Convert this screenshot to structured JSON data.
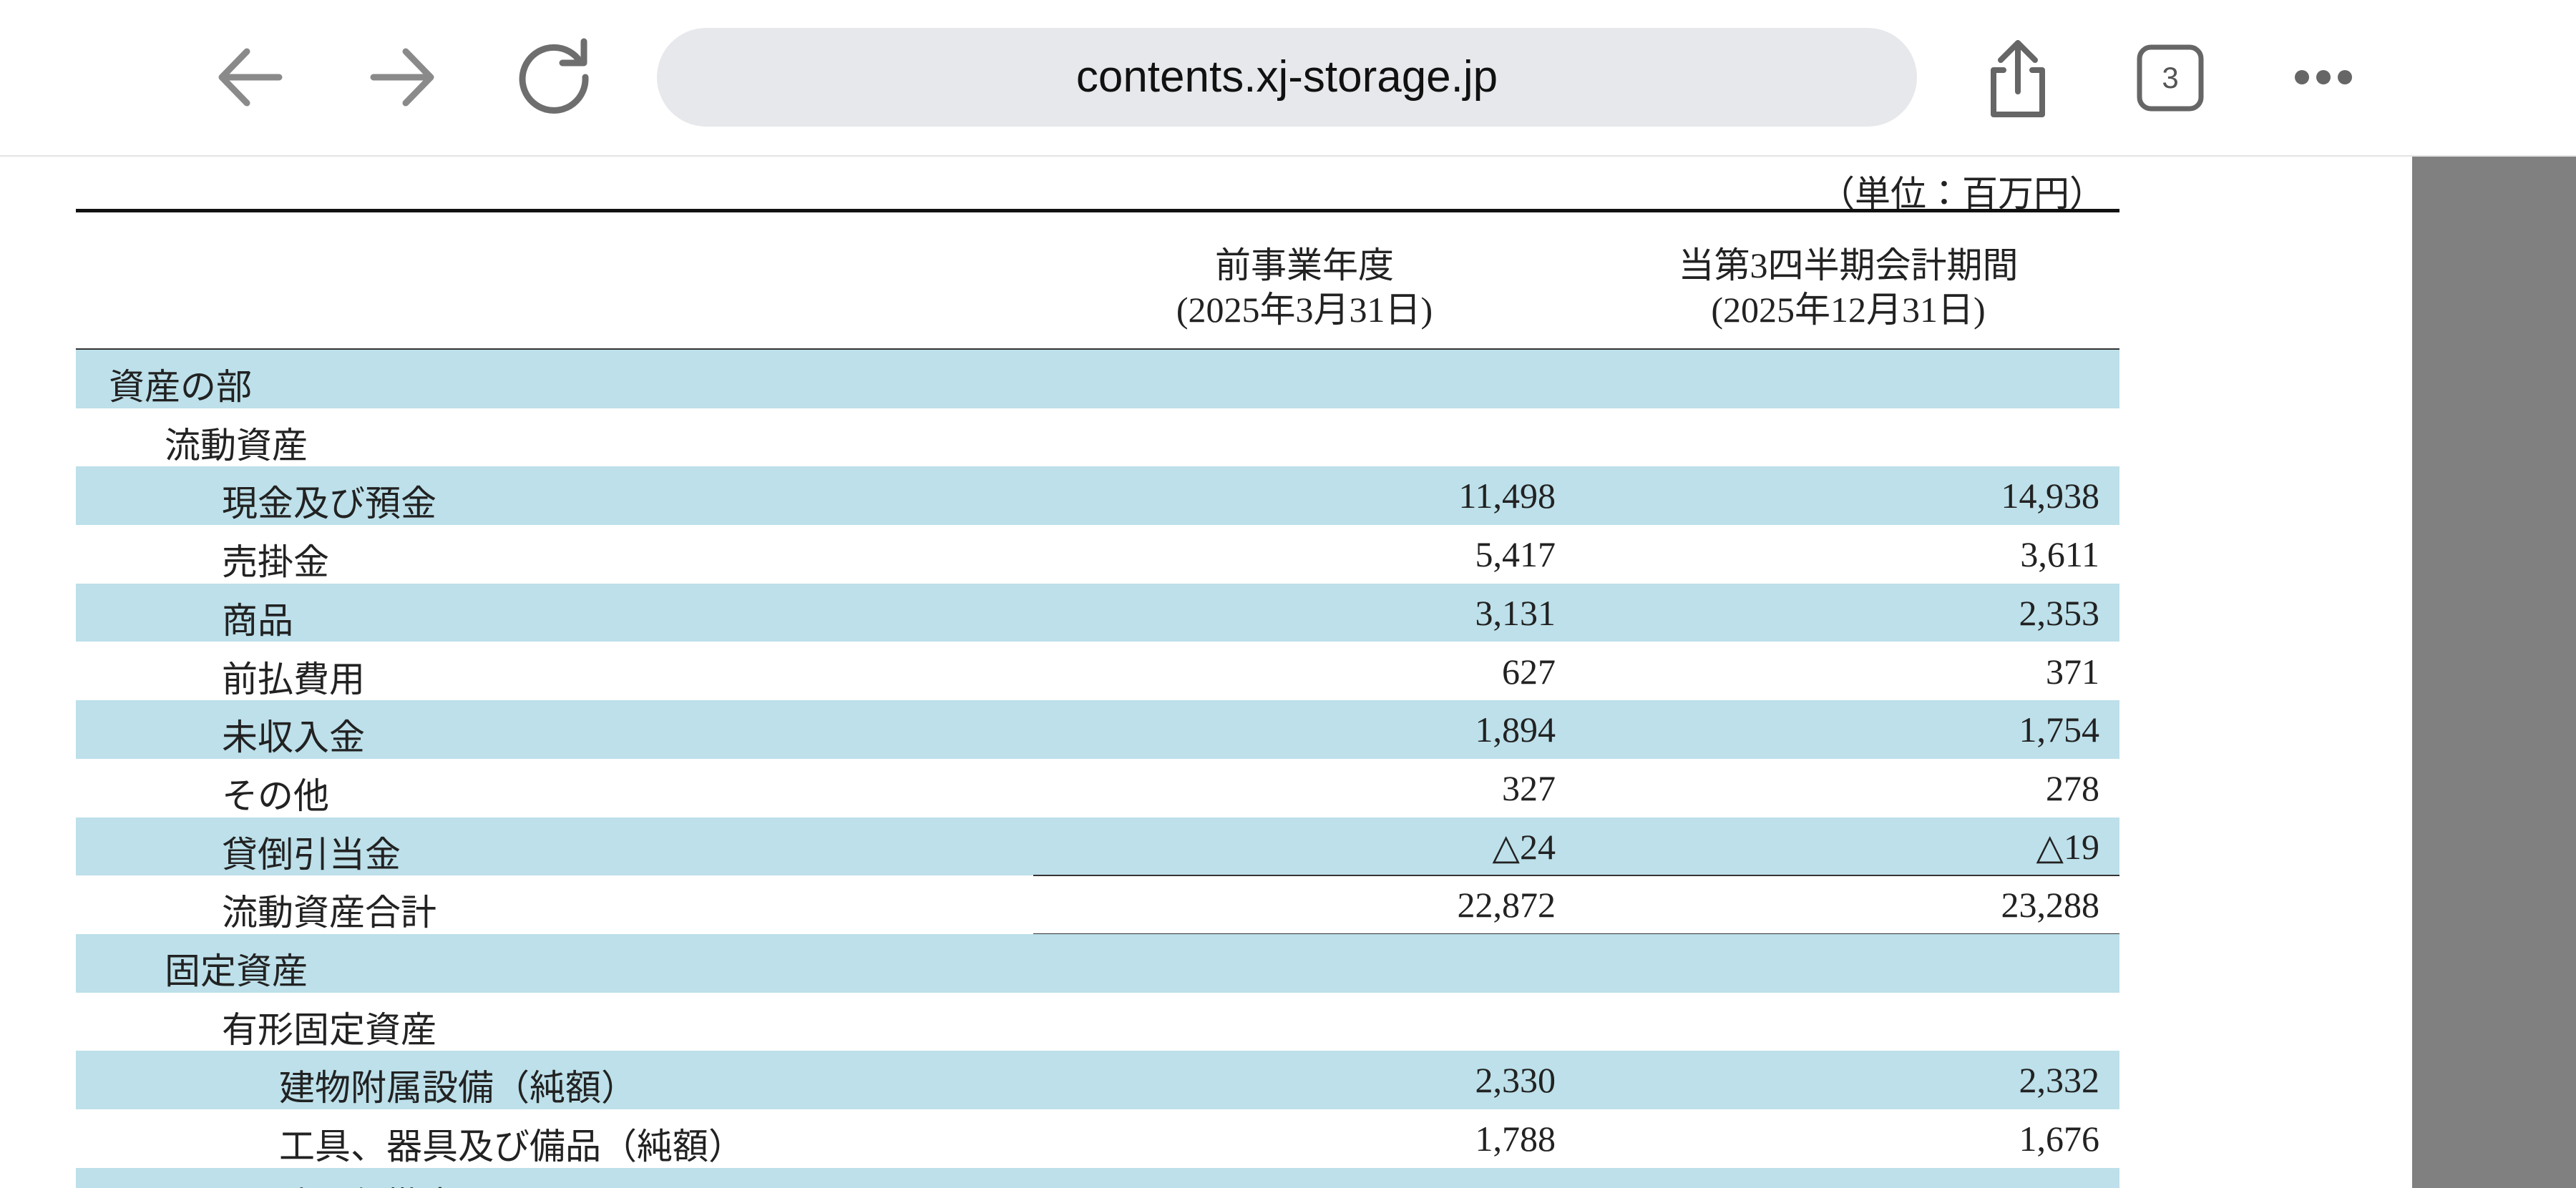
{
  "browser": {
    "url": "contents.xj-storage.jp",
    "tab_count": "3"
  },
  "table": {
    "unit": "（単位：百万円）",
    "columns": [
      {
        "title": "前事業年度",
        "date": "(2025年3月31日)"
      },
      {
        "title": "当第3四半期会計期間",
        "date": "(2025年12月31日)"
      }
    ],
    "rows": [
      {
        "label": "資産の部",
        "level": 0
      },
      {
        "label": "流動資産",
        "level": 1
      },
      {
        "label": "現金及び預金",
        "level": 2,
        "values": [
          "11,498",
          "14,938"
        ]
      },
      {
        "label": "売掛金",
        "level": 2,
        "values": [
          "5,417",
          "3,611"
        ]
      },
      {
        "label": "商品",
        "level": 2,
        "values": [
          "3,131",
          "2,353"
        ]
      },
      {
        "label": "前払費用",
        "level": 2,
        "values": [
          "627",
          "371"
        ]
      },
      {
        "label": "未収入金",
        "level": 2,
        "values": [
          "1,894",
          "1,754"
        ]
      },
      {
        "label": "その他",
        "level": 2,
        "values": [
          "327",
          "278"
        ]
      },
      {
        "label": "貸倒引当金",
        "level": 2,
        "values": [
          "△24",
          "△19"
        ]
      },
      {
        "label": "流動資産合計",
        "level": 2,
        "values": [
          "22,872",
          "23,288"
        ],
        "total": true
      },
      {
        "label": "固定資産",
        "level": 1
      },
      {
        "label": "有形固定資産",
        "level": 2
      },
      {
        "label": "建物附属設備（純額）",
        "level": 3,
        "values": [
          "2,330",
          "2,332"
        ]
      },
      {
        "label": "工具、器具及び備品（純額）",
        "level": 3,
        "values": [
          "1,788",
          "1,676"
        ]
      },
      {
        "label": "建設仮勘定",
        "level": 3
      }
    ]
  }
}
